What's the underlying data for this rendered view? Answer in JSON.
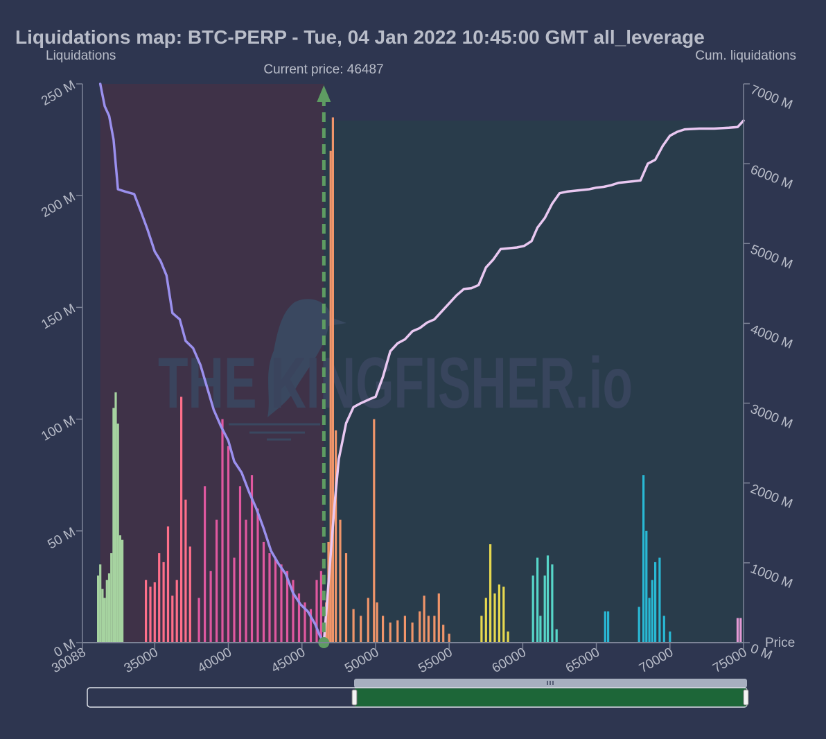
{
  "chart_data": {
    "type": "bar",
    "title": "Liquidations map: BTC-PERP - Tue, 04 Jan 2022 10:45:00 GMT all_leverage",
    "current_price_label": "Current price: 46487",
    "current_price": 46487,
    "xlabel": "Price",
    "ylabel_left": "Liquidations",
    "ylabel_right": "Cum. liquidations",
    "watermark": "THE KINGFISHER.io",
    "xlim": [
      30088,
      75000
    ],
    "ylim_left": [
      0,
      250
    ],
    "ylim_right": [
      0,
      7000
    ],
    "x_ticks": [
      "30088",
      "35000",
      "40000",
      "45000",
      "50000",
      "55000",
      "60000",
      "65000",
      "70000",
      "75000"
    ],
    "x_tick_values": [
      30088,
      35000,
      40000,
      45000,
      50000,
      55000,
      60000,
      65000,
      70000,
      75000
    ],
    "y_ticks_left": [
      "0 M",
      "50 M",
      "100 M",
      "150 M",
      "200 M",
      "250 M"
    ],
    "y_tick_values_left": [
      0,
      50,
      100,
      150,
      200,
      250
    ],
    "y_ticks_right": [
      "0 M",
      "1000 M",
      "2000 M",
      "3000 M",
      "4000 M",
      "5000 M",
      "6000 M",
      "7000 M"
    ],
    "y_tick_values_right": [
      0,
      1000,
      2000,
      3000,
      4000,
      5000,
      6000,
      7000
    ],
    "colors": {
      "background": "#2e3650",
      "short_area": "#3f3248",
      "long_area": "#293c4b",
      "cum_short_line": "#9b90ee",
      "cum_long_line": "#e9c8f1",
      "current_price_line": "#5e9c62",
      "navigator_fill": "#1d6638"
    },
    "series": [
      {
        "color": "#a6d3a0",
        "x": [
          31150,
          31300,
          31450,
          31600,
          31750,
          31900,
          32050,
          32200,
          32350,
          32500,
          32650,
          32800
        ],
        "values": [
          30,
          35,
          24,
          20,
          28,
          31,
          40,
          105,
          112,
          98,
          48,
          46
        ]
      },
      {
        "color": "#ff6f8a",
        "x": [
          34400,
          34700,
          35000,
          35300,
          35600,
          35900,
          36200,
          36500,
          36800,
          37100,
          37400
        ],
        "values": [
          28,
          25,
          27,
          40,
          36,
          52,
          21,
          28,
          110,
          64,
          43
        ]
      },
      {
        "color": "#e058a0",
        "x": [
          38000,
          38400,
          38800,
          39200,
          39600,
          40000,
          40400,
          40800,
          41200,
          41600,
          42000,
          42400,
          42800,
          43200,
          43600,
          44000,
          44400,
          44800,
          45200,
          45600,
          46000,
          46300
        ],
        "values": [
          20,
          70,
          32,
          55,
          100,
          88,
          38,
          70,
          55,
          75,
          60,
          45,
          40,
          38,
          35,
          32,
          28,
          22,
          18,
          15,
          28,
          32
        ]
      },
      {
        "color": "#f0956a",
        "x": [
          46650,
          46800,
          46950,
          47100,
          47300,
          47600,
          48000,
          48500,
          49000,
          49500,
          49900,
          50100,
          50500,
          51000,
          51500,
          52000,
          52500,
          53000,
          53300,
          53600,
          54000,
          54300,
          54600,
          55000
        ],
        "values": [
          18,
          45,
          220,
          235,
          95,
          55,
          40,
          15,
          12,
          20,
          100,
          18,
          12,
          9,
          10,
          12,
          9,
          14,
          21,
          12,
          12,
          22,
          8,
          4
        ]
      },
      {
        "color": "#e6d84f",
        "x": [
          57200,
          57500,
          57800,
          58100,
          58400,
          58700,
          59000
        ],
        "values": [
          12,
          20,
          44,
          22,
          26,
          25,
          5
        ]
      },
      {
        "color": "#57d6c9",
        "x": [
          60700,
          61000,
          61200,
          61500,
          61700,
          62000,
          62300
        ],
        "values": [
          30,
          38,
          12,
          30,
          39,
          35,
          6
        ]
      },
      {
        "color": "#29b8d4",
        "x": [
          65600,
          65800,
          67900,
          68200,
          68400,
          68600,
          68800,
          69000,
          69300,
          69600,
          70000
        ],
        "values": [
          14,
          14,
          16,
          75,
          50,
          20,
          28,
          36,
          38,
          12,
          5
        ]
      },
      {
        "color": "#e49ad5",
        "x": [
          74600,
          74800
        ],
        "values": [
          11,
          11
        ]
      }
    ],
    "cum_short": {
      "x": [
        31300,
        31600,
        31900,
        32200,
        32500,
        33000,
        33600,
        34100,
        34500,
        35000,
        35400,
        35800,
        36200,
        36700,
        37100,
        37600,
        38100,
        38600,
        39000,
        39500,
        40000,
        40400,
        40900,
        41400,
        41900,
        42400,
        42900,
        43400,
        43900,
        44400,
        44900,
        45400,
        45900,
        46200,
        46487
      ],
      "values": [
        7000,
        6720,
        6600,
        6300,
        5680,
        5650,
        5620,
        5380,
        5180,
        4900,
        4780,
        4600,
        4130,
        4050,
        3780,
        3690,
        3480,
        3170,
        2920,
        2710,
        2530,
        2270,
        2130,
        1890,
        1680,
        1430,
        1150,
        990,
        860,
        620,
        480,
        390,
        230,
        95,
        0
      ]
    },
    "cum_long": {
      "x": [
        46487,
        46700,
        46950,
        47200,
        47500,
        48000,
        48500,
        49000,
        49600,
        50000,
        50500,
        51000,
        51500,
        52000,
        52500,
        53000,
        53500,
        54000,
        54500,
        55000,
        55500,
        56000,
        56500,
        57000,
        57500,
        58000,
        58500,
        59000,
        59600,
        60100,
        60600,
        61000,
        61500,
        62000,
        62500,
        63000,
        63500,
        64000,
        64500,
        65000,
        65500,
        66000,
        66500,
        67000,
        67500,
        68000,
        68500,
        69000,
        69500,
        70000,
        70500,
        71000,
        72000,
        73000,
        74000,
        74600,
        75000
      ],
      "values": [
        0,
        500,
        1100,
        1700,
        2300,
        2750,
        2950,
        3000,
        3050,
        3080,
        3330,
        3650,
        3750,
        3800,
        3900,
        3940,
        4010,
        4050,
        4150,
        4250,
        4350,
        4430,
        4440,
        4480,
        4700,
        4800,
        4930,
        4940,
        4950,
        4970,
        5030,
        5200,
        5320,
        5500,
        5630,
        5650,
        5660,
        5670,
        5680,
        5700,
        5710,
        5730,
        5760,
        5770,
        5780,
        5790,
        6000,
        6050,
        6220,
        6350,
        6400,
        6430,
        6440,
        6440,
        6450,
        6460,
        6540
      ]
    }
  }
}
